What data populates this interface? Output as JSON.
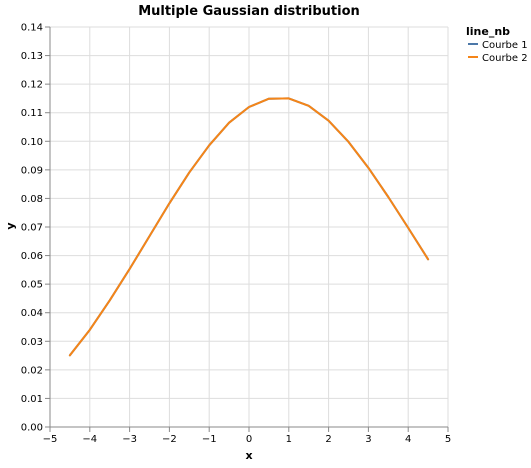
{
  "chart_data": {
    "type": "line",
    "title": "Multiple Gaussian distribution",
    "xlabel": "x",
    "ylabel": "y",
    "xlim": [
      -5,
      5
    ],
    "ylim": [
      0,
      0.14
    ],
    "x_ticks": [
      -5,
      -4,
      -3,
      -2,
      -1,
      0,
      1,
      2,
      3,
      4,
      5
    ],
    "x_tick_labels": [
      "−5",
      "−4",
      "−3",
      "−2",
      "−1",
      "0",
      "1",
      "2",
      "3",
      "4",
      "5"
    ],
    "y_ticks": [
      0,
      0.01,
      0.02,
      0.03,
      0.04,
      0.05,
      0.06,
      0.07,
      0.08,
      0.09,
      0.1,
      0.11,
      0.12,
      0.13,
      0.14
    ],
    "y_tick_labels": [
      "0.00",
      "0.01",
      "0.02",
      "0.03",
      "0.04",
      "0.05",
      "0.06",
      "0.07",
      "0.08",
      "0.09",
      "0.10",
      "0.11",
      "0.12",
      "0.13",
      "0.14"
    ],
    "grid": true,
    "legend": {
      "title": "line_nb",
      "position": "top-right"
    },
    "x": [
      -4.5,
      -4.0,
      -3.5,
      -3.0,
      -2.5,
      -2.0,
      -1.5,
      -1.0,
      -0.5,
      0.0,
      0.5,
      1.0,
      1.5,
      2.0,
      2.5,
      3.0,
      3.5,
      4.0,
      4.5
    ],
    "series": [
      {
        "name": "Courbe 1",
        "color": "#4c78a8",
        "values": [
          0.0251,
          0.034,
          0.0443,
          0.0553,
          0.0668,
          0.0783,
          0.0891,
          0.0986,
          0.1065,
          0.112,
          0.1149,
          0.115,
          0.1124,
          0.1072,
          0.0998,
          0.0907,
          0.0805,
          0.0697,
          0.0587
        ]
      },
      {
        "name": "Courbe 2",
        "color": "#f58518",
        "values": [
          0.0251,
          0.034,
          0.0443,
          0.0553,
          0.0668,
          0.0783,
          0.0891,
          0.0986,
          0.1065,
          0.112,
          0.1149,
          0.115,
          0.1124,
          0.1072,
          0.0998,
          0.0907,
          0.0805,
          0.0697,
          0.0587
        ]
      }
    ]
  }
}
